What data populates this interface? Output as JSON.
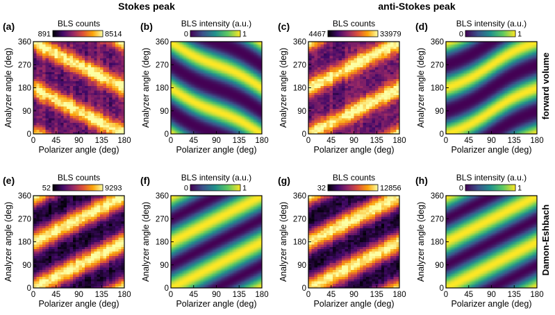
{
  "figure": {
    "group_titles": [
      "Stokes peak",
      "anti-Stokes peak"
    ],
    "row_labels": [
      "forward volume",
      "Damon-Eshbach"
    ],
    "colormaps": {
      "inferno": [
        "#000004",
        "#420a68",
        "#932667",
        "#dd513a",
        "#fca50a",
        "#fcffa4"
      ],
      "viridis": [
        "#440154",
        "#3b528b",
        "#21918c",
        "#5ec962",
        "#fde725"
      ]
    }
  },
  "chart_data": [
    {
      "type": "heatmap",
      "panel": "(a)",
      "row": 0,
      "col": 0,
      "kind": "measured",
      "colormap": "inferno",
      "colorbar": {
        "title": "BLS counts",
        "min": "891",
        "max": "8514"
      },
      "xlabel": "Polarizer angle (deg)",
      "ylabel": "Analyzer angle (deg)",
      "xlim": [
        0,
        180
      ],
      "ylim": [
        0,
        360
      ],
      "xticks": [
        "0",
        "45",
        "90",
        "135",
        "180"
      ],
      "yticks": [
        "0",
        "90",
        "180",
        "270",
        "360"
      ],
      "model": {
        "a": 1,
        "b": 0,
        "phi": 0,
        "gamma": 2.2,
        "bias": 0.28,
        "noise": 0.18
      }
    },
    {
      "type": "heatmap",
      "panel": "(b)",
      "row": 0,
      "col": 1,
      "kind": "simulated",
      "colormap": "viridis",
      "colorbar": {
        "title": "BLS intensity (a.u.)",
        "min": "0",
        "max": "1"
      },
      "xlabel": "Polarizer angle (deg)",
      "ylabel": "Analyzer angle (deg)",
      "xlim": [
        0,
        180
      ],
      "ylim": [
        0,
        360
      ],
      "xticks": [
        "0",
        "45",
        "90",
        "135",
        "180"
      ],
      "yticks": [
        "0",
        "90",
        "180",
        "270",
        "360"
      ],
      "model": {
        "a": 1,
        "b": 0.15,
        "phi": 0,
        "gamma": 1.3,
        "bias": 0,
        "noise": 0
      }
    },
    {
      "type": "heatmap",
      "panel": "(c)",
      "row": 0,
      "col": 2,
      "kind": "measured",
      "colormap": "inferno",
      "colorbar": {
        "title": "BLS counts",
        "min": "4467",
        "max": "33979"
      },
      "xlabel": "Polarizer angle (deg)",
      "ylabel": "Analyzer angle (deg)",
      "xlim": [
        0,
        180
      ],
      "ylim": [
        0,
        360
      ],
      "xticks": [
        "0",
        "45",
        "90",
        "135",
        "180"
      ],
      "yticks": [
        "0",
        "90",
        "180",
        "270",
        "360"
      ],
      "model": {
        "a": -1,
        "b": 0,
        "phi": 0,
        "gamma": 2.2,
        "bias": 0.28,
        "noise": 0.18
      }
    },
    {
      "type": "heatmap",
      "panel": "(d)",
      "row": 0,
      "col": 3,
      "kind": "simulated",
      "colormap": "viridis",
      "colorbar": {
        "title": "BLS intensity (a.u.)",
        "min": "0",
        "max": "1"
      },
      "xlabel": "Polarizer angle (deg)",
      "ylabel": "Analyzer angle (deg)",
      "xlim": [
        0,
        180
      ],
      "ylim": [
        0,
        360
      ],
      "xticks": [
        "0",
        "45",
        "90",
        "135",
        "180"
      ],
      "yticks": [
        "0",
        "90",
        "180",
        "270",
        "360"
      ],
      "model": {
        "a": -1,
        "b": 0.15,
        "phi": 0,
        "gamma": 1.3,
        "bias": 0,
        "noise": 0
      }
    },
    {
      "type": "heatmap",
      "panel": "(e)",
      "row": 1,
      "col": 0,
      "kind": "measured",
      "colormap": "inferno",
      "colorbar": {
        "title": "BLS counts",
        "min": "52",
        "max": "9293"
      },
      "xlabel": "Polarizer angle (deg)",
      "ylabel": "Analyzer angle (deg)",
      "xlim": [
        0,
        180
      ],
      "ylim": [
        0,
        360
      ],
      "xticks": [
        "0",
        "45",
        "90",
        "135",
        "180"
      ],
      "yticks": [
        "0",
        "90",
        "180",
        "270",
        "360"
      ],
      "model": {
        "a": -1,
        "b": 0,
        "phi": 0,
        "gamma": 1.5,
        "bias": 0.1,
        "noise": 0.13
      }
    },
    {
      "type": "heatmap",
      "panel": "(f)",
      "row": 1,
      "col": 1,
      "kind": "simulated",
      "colormap": "viridis",
      "colorbar": {
        "title": "BLS intensity (a.u.)",
        "min": "0",
        "max": "1"
      },
      "xlabel": "Polarizer angle (deg)",
      "ylabel": "Analyzer angle (deg)",
      "xlim": [
        0,
        180
      ],
      "ylim": [
        0,
        360
      ],
      "xticks": [
        "0",
        "45",
        "90",
        "135",
        "180"
      ],
      "yticks": [
        "0",
        "90",
        "180",
        "270",
        "360"
      ],
      "model": {
        "a": -1,
        "b": 0,
        "phi": 0,
        "gamma": 1.0,
        "bias": 0,
        "noise": 0
      }
    },
    {
      "type": "heatmap",
      "panel": "(g)",
      "row": 1,
      "col": 2,
      "kind": "measured",
      "colormap": "inferno",
      "colorbar": {
        "title": "BLS counts",
        "min": "32",
        "max": "12856"
      },
      "xlabel": "Polarizer angle (deg)",
      "ylabel": "Analyzer angle (deg)",
      "xlim": [
        0,
        180
      ],
      "ylim": [
        0,
        360
      ],
      "xticks": [
        "0",
        "45",
        "90",
        "135",
        "180"
      ],
      "yticks": [
        "0",
        "90",
        "180",
        "270",
        "360"
      ],
      "model": {
        "a": -1,
        "b": 0,
        "phi": 0,
        "gamma": 1.5,
        "bias": 0.1,
        "noise": 0.13
      }
    },
    {
      "type": "heatmap",
      "panel": "(h)",
      "row": 1,
      "col": 3,
      "kind": "simulated",
      "colormap": "viridis",
      "colorbar": {
        "title": "BLS intensity (a.u.)",
        "min": "0",
        "max": "1"
      },
      "xlabel": "Polarizer angle (deg)",
      "ylabel": "Analyzer angle (deg)",
      "xlim": [
        0,
        180
      ],
      "ylim": [
        0,
        360
      ],
      "xticks": [
        "0",
        "45",
        "90",
        "135",
        "180"
      ],
      "yticks": [
        "0",
        "90",
        "180",
        "270",
        "360"
      ],
      "model": {
        "a": -1,
        "b": 0,
        "phi": 0,
        "gamma": 1.0,
        "bias": 0,
        "noise": 0
      }
    }
  ]
}
